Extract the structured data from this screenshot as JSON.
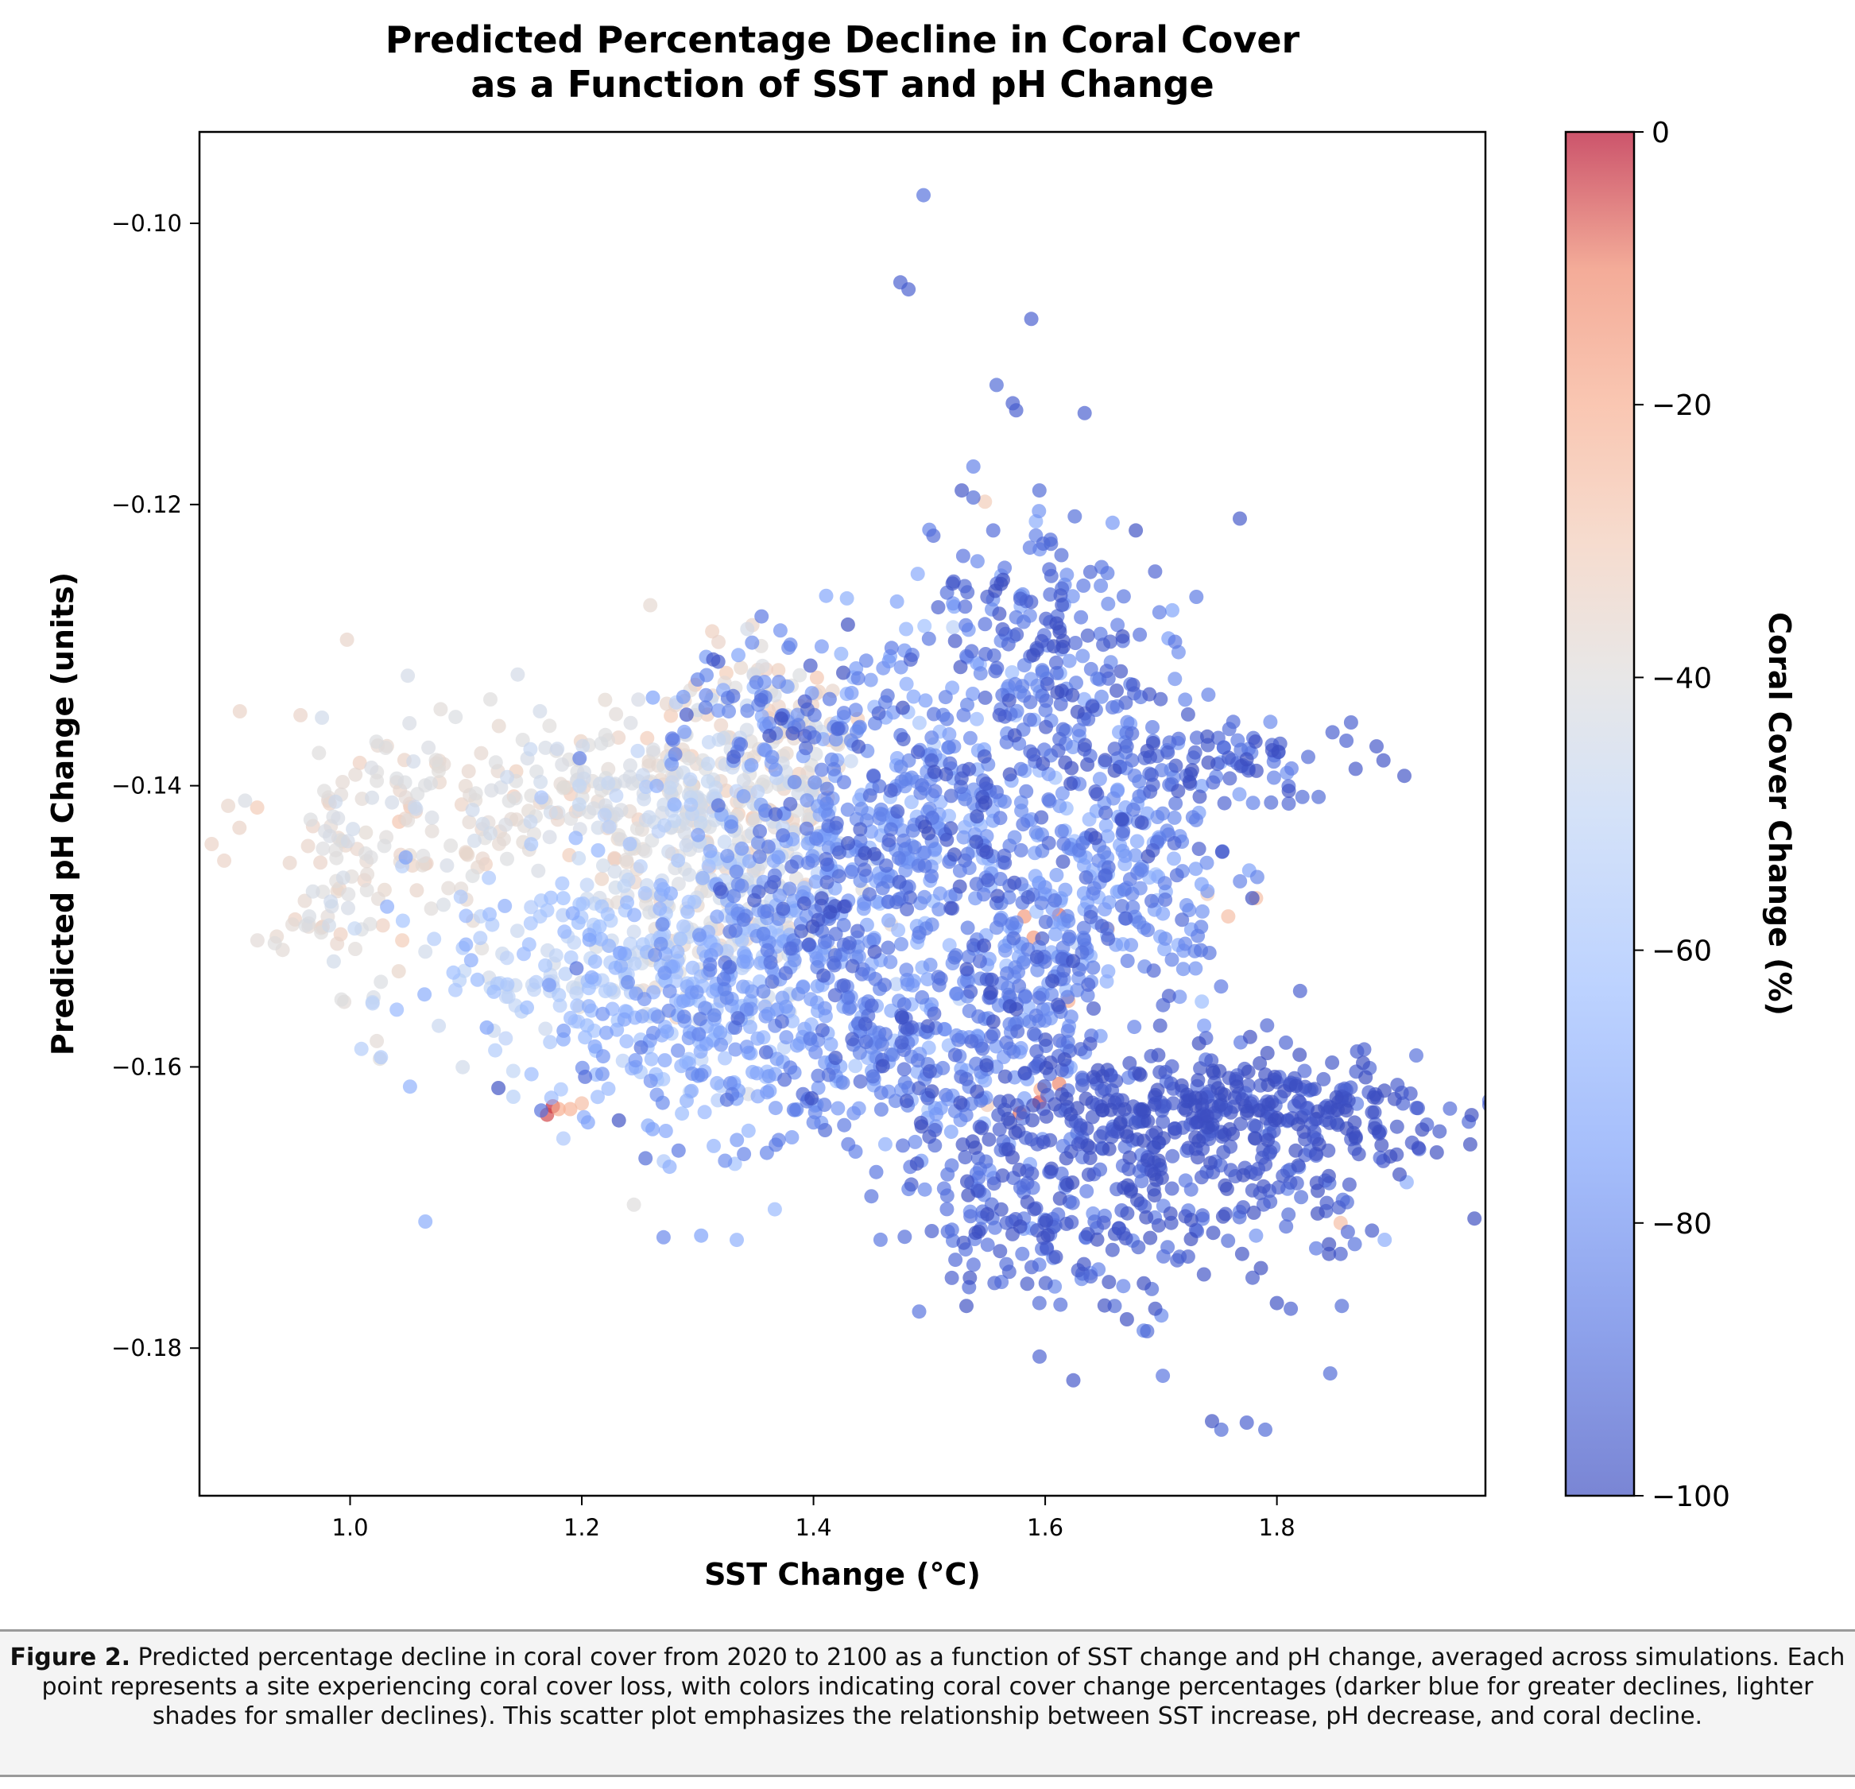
{
  "chart_data": {
    "type": "scatter",
    "title_lines": [
      "Predicted Percentage Decline in Coral Cover",
      "as a Function of SST and pH Change"
    ],
    "xlabel": "SST Change (°C)",
    "ylabel": "Predicted pH Change (units)",
    "xlim": [
      0.87,
      1.98
    ],
    "ylim": [
      -0.1905,
      -0.0935
    ],
    "x_ticks": [
      1.0,
      1.2,
      1.4,
      1.6,
      1.8
    ],
    "x_tick_labels": [
      "1.0",
      "1.2",
      "1.4",
      "1.6",
      "1.8"
    ],
    "y_ticks": [
      -0.1,
      -0.12,
      -0.14,
      -0.16,
      -0.18
    ],
    "y_tick_labels": [
      "−0.10",
      "−0.12",
      "−0.14",
      "−0.16",
      "−0.18"
    ],
    "grid": false,
    "colorbar": {
      "label": "Coral Cover Change (%)",
      "colormap": "coolwarm",
      "range": [
        -100,
        0
      ],
      "ticks": [
        0,
        -20,
        -40,
        -60,
        -80,
        -100
      ],
      "tick_labels": [
        "0",
        "−20",
        "−40",
        "−60",
        "−80",
        "−100"
      ],
      "low_color": "#3b4cc0",
      "mid_color": "#dddddd",
      "high_color": "#b40426"
    },
    "clusters": [
      {
        "x": 1.05,
        "y": -0.1425,
        "sx": 0.06,
        "sy": 0.004,
        "c": -38,
        "sc": 4,
        "n": 130
      },
      {
        "x": 0.99,
        "y": -0.1495,
        "sx": 0.025,
        "sy": 0.004,
        "c": -40,
        "sc": 4,
        "n": 40
      },
      {
        "x": 1.22,
        "y": -0.1405,
        "sx": 0.07,
        "sy": 0.003,
        "c": -40,
        "sc": 5,
        "n": 160
      },
      {
        "x": 1.32,
        "y": -0.1445,
        "sx": 0.05,
        "sy": 0.006,
        "c": -43,
        "sc": 6,
        "n": 320
      },
      {
        "x": 1.2,
        "y": -0.1525,
        "sx": 0.07,
        "sy": 0.004,
        "c": -55,
        "sc": 7,
        "n": 190
      },
      {
        "x": 1.3,
        "y": -0.157,
        "sx": 0.06,
        "sy": 0.005,
        "c": -70,
        "sc": 8,
        "n": 260
      },
      {
        "x": 1.4,
        "y": -0.148,
        "sx": 0.05,
        "sy": 0.006,
        "c": -82,
        "sc": 10,
        "n": 280
      },
      {
        "x": 1.38,
        "y": -0.135,
        "sx": 0.06,
        "sy": 0.003,
        "c": -83,
        "sc": 8,
        "n": 110
      },
      {
        "x": 1.52,
        "y": -0.142,
        "sx": 0.05,
        "sy": 0.007,
        "c": -80,
        "sc": 10,
        "n": 320
      },
      {
        "x": 1.48,
        "y": -0.159,
        "sx": 0.07,
        "sy": 0.003,
        "c": -82,
        "sc": 9,
        "n": 240
      },
      {
        "x": 1.66,
        "y": -0.1475,
        "sx": 0.05,
        "sy": 0.004,
        "c": -80,
        "sc": 8,
        "n": 200
      },
      {
        "x": 1.64,
        "y": -0.1345,
        "sx": 0.05,
        "sy": 0.006,
        "c": -88,
        "sc": 8,
        "n": 200
      },
      {
        "x": 1.75,
        "y": -0.163,
        "sx": 0.1,
        "sy": 0.002,
        "c": -96,
        "sc": 4,
        "n": 380
      },
      {
        "x": 1.72,
        "y": -0.1685,
        "sx": 0.08,
        "sy": 0.003,
        "c": -95,
        "sc": 5,
        "n": 150
      },
      {
        "x": 1.63,
        "y": -0.1705,
        "sx": 0.06,
        "sy": 0.004,
        "c": -93,
        "sc": 6,
        "n": 100
      },
      {
        "x": 1.75,
        "y": -0.1385,
        "sx": 0.04,
        "sy": 0.0015,
        "c": -92,
        "sc": 6,
        "n": 70
      },
      {
        "x": 1.55,
        "y": -0.169,
        "sx": 0.04,
        "sy": 0.003,
        "c": -90,
        "sc": 7,
        "n": 70
      },
      {
        "x": 1.58,
        "y": -0.1545,
        "sx": 0.04,
        "sy": 0.003,
        "c": -85,
        "sc": 7,
        "n": 90
      },
      {
        "x": 1.58,
        "y": -0.1275,
        "sx": 0.03,
        "sy": 0.003,
        "c": -92,
        "sc": 5,
        "n": 55
      },
      {
        "x": 1.36,
        "y": -0.138,
        "sx": 0.04,
        "sy": 0.004,
        "c": -37,
        "sc": 5,
        "n": 110
      }
    ],
    "points": [
      [
        1.495,
        -0.098,
        -90
      ],
      [
        1.475,
        -0.1042,
        -95
      ],
      [
        1.482,
        -0.1047,
        -95
      ],
      [
        1.588,
        -0.1068,
        -95
      ],
      [
        1.558,
        -0.1115,
        -92
      ],
      [
        1.572,
        -0.1128,
        -95
      ],
      [
        1.575,
        -0.1133,
        -95
      ],
      [
        1.634,
        -0.1135,
        -95
      ],
      [
        1.538,
        -0.1173,
        -85
      ],
      [
        1.528,
        -0.119,
        -98
      ],
      [
        1.538,
        -0.1195,
        -92
      ],
      [
        1.595,
        -0.119,
        -92
      ],
      [
        1.548,
        -0.1198,
        -30
      ],
      [
        1.592,
        -0.1212,
        -70
      ],
      [
        1.5,
        -0.1218,
        -85
      ],
      [
        1.592,
        -0.1222,
        -85
      ],
      [
        1.605,
        -0.1228,
        -92
      ],
      [
        1.614,
        -0.1236,
        -92
      ],
      [
        1.565,
        -0.1245,
        -88
      ],
      [
        1.848,
        -0.1362,
        -95
      ],
      [
        1.864,
        -0.1355,
        -95
      ],
      [
        1.86,
        -0.1368,
        -95
      ],
      [
        1.886,
        -0.1372,
        -97
      ],
      [
        1.91,
        -0.1393,
        -98
      ],
      [
        1.892,
        -0.1382,
        -98
      ],
      [
        1.868,
        -0.1388,
        -97
      ],
      [
        1.795,
        -0.1412,
        -92
      ],
      [
        1.822,
        -0.1408,
        -92
      ],
      [
        1.836,
        -0.1408,
        -92
      ],
      [
        1.735,
        -0.147,
        -75
      ],
      [
        1.74,
        -0.1477,
        -30
      ],
      [
        1.758,
        -0.1493,
        -25
      ],
      [
        1.782,
        -0.148,
        -25
      ],
      [
        1.722,
        -0.1485,
        -80
      ],
      [
        1.654,
        -0.1502,
        -25
      ],
      [
        1.612,
        -0.1492,
        -8
      ],
      [
        1.582,
        -0.1493,
        -15
      ],
      [
        1.59,
        -0.1508,
        -15
      ],
      [
        1.82,
        -0.1546,
        -95
      ],
      [
        1.62,
        -0.1553,
        -20
      ],
      [
        1.128,
        -0.1615,
        -99
      ],
      [
        1.175,
        -0.1628,
        -2
      ],
      [
        1.17,
        -0.1634,
        -5
      ],
      [
        1.18,
        -0.163,
        -20
      ],
      [
        1.19,
        -0.163,
        -22
      ],
      [
        1.2,
        -0.1626,
        -25
      ],
      [
        1.182,
        -0.1616,
        -60
      ],
      [
        1.165,
        -0.1631,
        -90
      ],
      [
        1.232,
        -0.1638,
        -99
      ],
      [
        1.255,
        -0.1665,
        -92
      ],
      [
        1.245,
        -0.1698,
        -40
      ],
      [
        1.303,
        -0.172,
        -75
      ],
      [
        1.45,
        -0.1692,
        -90
      ],
      [
        1.462,
        -0.1655,
        -70
      ],
      [
        1.578,
        -0.1633,
        -8
      ],
      [
        1.612,
        -0.1612,
        -10
      ],
      [
        1.596,
        -0.1616,
        -20
      ],
      [
        1.55,
        -0.1627,
        -30
      ],
      [
        1.595,
        -0.1625,
        -5
      ],
      [
        1.535,
        -0.175,
        -99
      ],
      [
        1.532,
        -0.177,
        -99
      ],
      [
        1.54,
        -0.1718,
        -99
      ],
      [
        1.595,
        -0.1768,
        -92
      ],
      [
        1.655,
        -0.1753,
        -99
      ],
      [
        1.688,
        -0.1788,
        -92
      ],
      [
        1.695,
        -0.1772,
        -99
      ],
      [
        1.66,
        -0.177,
        -92
      ],
      [
        1.692,
        -0.1758,
        -92
      ],
      [
        1.716,
        -0.1735,
        -92
      ],
      [
        1.745,
        -0.1718,
        -99
      ],
      [
        1.77,
        -0.1733,
        -99
      ],
      [
        1.8,
        -0.1768,
        -99
      ],
      [
        1.812,
        -0.1772,
        -95
      ],
      [
        1.845,
        -0.1733,
        -99
      ],
      [
        1.855,
        -0.1733,
        -95
      ],
      [
        1.856,
        -0.177,
        -92
      ],
      [
        1.846,
        -0.1818,
        -92
      ],
      [
        1.893,
        -0.1723,
        -70
      ],
      [
        1.912,
        -0.1682,
        -70
      ],
      [
        1.855,
        -0.1711,
        -25
      ],
      [
        1.744,
        -0.1852,
        -99
      ],
      [
        1.752,
        -0.1858,
        -92
      ],
      [
        1.774,
        -0.1853,
        -95
      ],
      [
        1.79,
        -0.1858,
        -92
      ],
      [
        1.782,
        -0.172,
        -80
      ],
      [
        1.81,
        -0.1705,
        -92
      ],
      [
        0.92,
        -0.151,
        -38
      ],
      [
        0.935,
        -0.1512,
        -40
      ],
      [
        1.045,
        -0.151,
        -30
      ],
      [
        1.042,
        -0.1532,
        -35
      ],
      [
        1.065,
        -0.1518,
        -45
      ],
      [
        1.032,
        -0.1486,
        -70
      ],
      [
        1.048,
        -0.1451,
        -75
      ],
      [
        1.1,
        -0.1513,
        -70
      ],
      [
        1.11,
        -0.1538,
        -65
      ],
      [
        1.118,
        -0.1572,
        -75
      ],
      [
        1.37,
        -0.1652,
        -85
      ],
      [
        1.34,
        -0.1662,
        -85
      ],
      [
        1.41,
        -0.1645,
        -92
      ],
      [
        1.43,
        -0.1655,
        -88
      ]
    ]
  },
  "caption": {
    "label": "Figure 2.",
    "text": "Predicted percentage decline in coral cover from 2020 to 2100 as a function of SST change and pH change, averaged across simulations. Each point represents a site experiencing coral cover loss, with colors indicating coral cover change percentages (darker blue for greater declines, lighter shades for smaller declines). This scatter plot emphasizes the relationship between SST increase, pH decrease, and coral decline."
  }
}
